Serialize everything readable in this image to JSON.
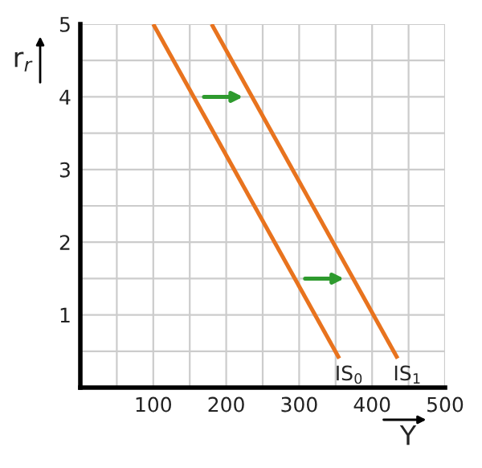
{
  "chart_data": {
    "type": "line",
    "xlabel": "Y",
    "ylabel": "r$_{r}$",
    "series": [
      {
        "color": "#e8731e",
        "x": [
          100,
          355
        ],
        "values": [
          5,
          0.4
        ]
      },
      {
        "color": "#e8731e",
        "x": [
          180,
          435
        ],
        "values": [
          5,
          0.4
        ]
      }
    ],
    "annotations": [
      {
        "text": "IS$_{0}$",
        "x": 355,
        "y": 0.4
      },
      {
        "text": "IS$_{1}$",
        "x": 435,
        "y": 0.4
      }
    ],
    "xlim": [
      0,
      500
    ],
    "ylim": [
      0,
      5
    ],
    "xticks": [
      {
        "value": 50,
        "label": null
      },
      100,
      {
        "value": 150,
        "label": null
      },
      200,
      {
        "value": 250,
        "label": null
      },
      300,
      {
        "value": 350,
        "label": null
      },
      400,
      {
        "value": 450,
        "label": null
      },
      500
    ],
    "yticks": [
      {
        "value": 0.5,
        "label": null
      },
      1,
      {
        "value": 1.5,
        "label": null
      },
      2,
      {
        "value": 2.5,
        "label": null
      },
      3,
      {
        "value": 3.5,
        "label": null
      },
      4,
      {
        "value": 4.5,
        "label": null
      },
      5
    ],
    "grid": true,
    "marker": "none",
    "line_style": "solid"
  }
}
